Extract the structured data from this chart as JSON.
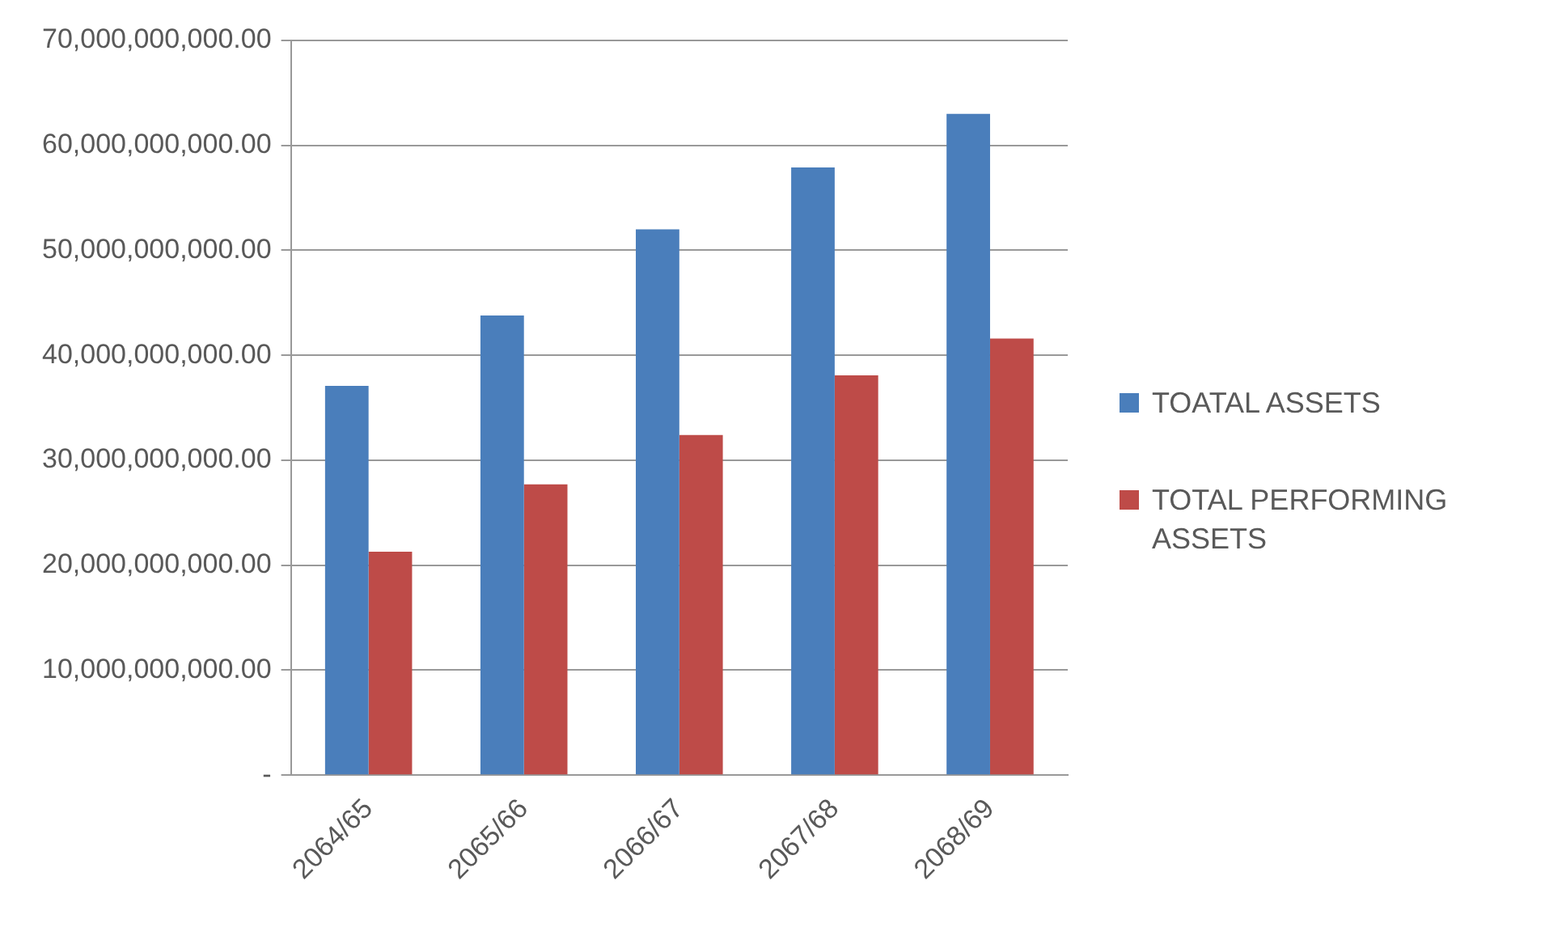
{
  "chart_data": {
    "type": "bar",
    "categories": [
      "2064/65",
      "2065/66",
      "2066/67",
      "2067/68",
      "2068/69"
    ],
    "series": [
      {
        "name": "TOATAL ASSETS",
        "color": "#4a7ebb",
        "values": [
          37100000000,
          43800000000,
          52000000000,
          57900000000,
          63000000000
        ]
      },
      {
        "name": "TOTAL PERFORMING ASSETS",
        "color": "#be4b48",
        "values": [
          21300000000,
          27700000000,
          32400000000,
          38100000000,
          41600000000
        ]
      }
    ],
    "ylim": [
      0,
      70000000000
    ],
    "yticks": [
      {
        "value": 0,
        "label": "-"
      },
      {
        "value": 10000000000,
        "label": "10,000,000,000.00"
      },
      {
        "value": 20000000000,
        "label": "20,000,000,000.00"
      },
      {
        "value": 30000000000,
        "label": "30,000,000,000.00"
      },
      {
        "value": 40000000000,
        "label": "40,000,000,000.00"
      },
      {
        "value": 50000000000,
        "label": "50,000,000,000.00"
      },
      {
        "value": 60000000000,
        "label": "60,000,000,000.00"
      },
      {
        "value": 70000000000,
        "label": "70,000,000,000.00"
      }
    ],
    "grid": "y",
    "legend": "right"
  }
}
